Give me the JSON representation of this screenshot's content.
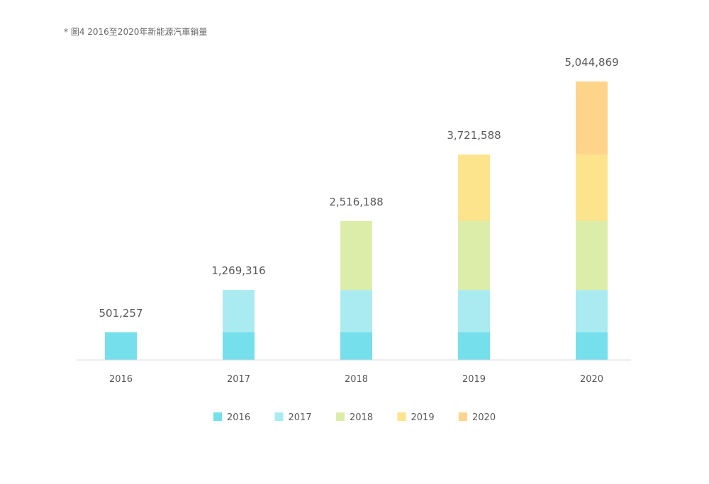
{
  "caption": "* 圖4 2016至2020年新能源汽車銷量",
  "chart_data": {
    "type": "bar",
    "stacked": true,
    "categories": [
      "2016",
      "2017",
      "2018",
      "2019",
      "2020"
    ],
    "series": [
      {
        "name": "2016",
        "color": "#76dfec",
        "values": [
          501257,
          501257,
          501257,
          501257,
          501257
        ]
      },
      {
        "name": "2017",
        "color": "#aaebf1",
        "values": [
          0,
          768059,
          768059,
          768059,
          768059
        ]
      },
      {
        "name": "2018",
        "color": "#dcedaa",
        "values": [
          0,
          0,
          1246872,
          1246872,
          1246872
        ]
      },
      {
        "name": "2019",
        "color": "#fbe48c",
        "values": [
          0,
          0,
          0,
          1205400,
          1205400
        ]
      },
      {
        "name": "2020",
        "color": "#fed48b",
        "values": [
          0,
          0,
          0,
          0,
          1323281
        ]
      }
    ],
    "totals": [
      501257,
      1269316,
      2516188,
      3721588,
      5044869
    ],
    "total_labels": [
      "501,257",
      "1,269,316",
      "2,516,188",
      "3,721,588",
      "5,044,869"
    ],
    "ylim": [
      0,
      5044869
    ],
    "grid": false,
    "legend_position": "bottom",
    "title": "",
    "xlabel": "",
    "ylabel": ""
  }
}
